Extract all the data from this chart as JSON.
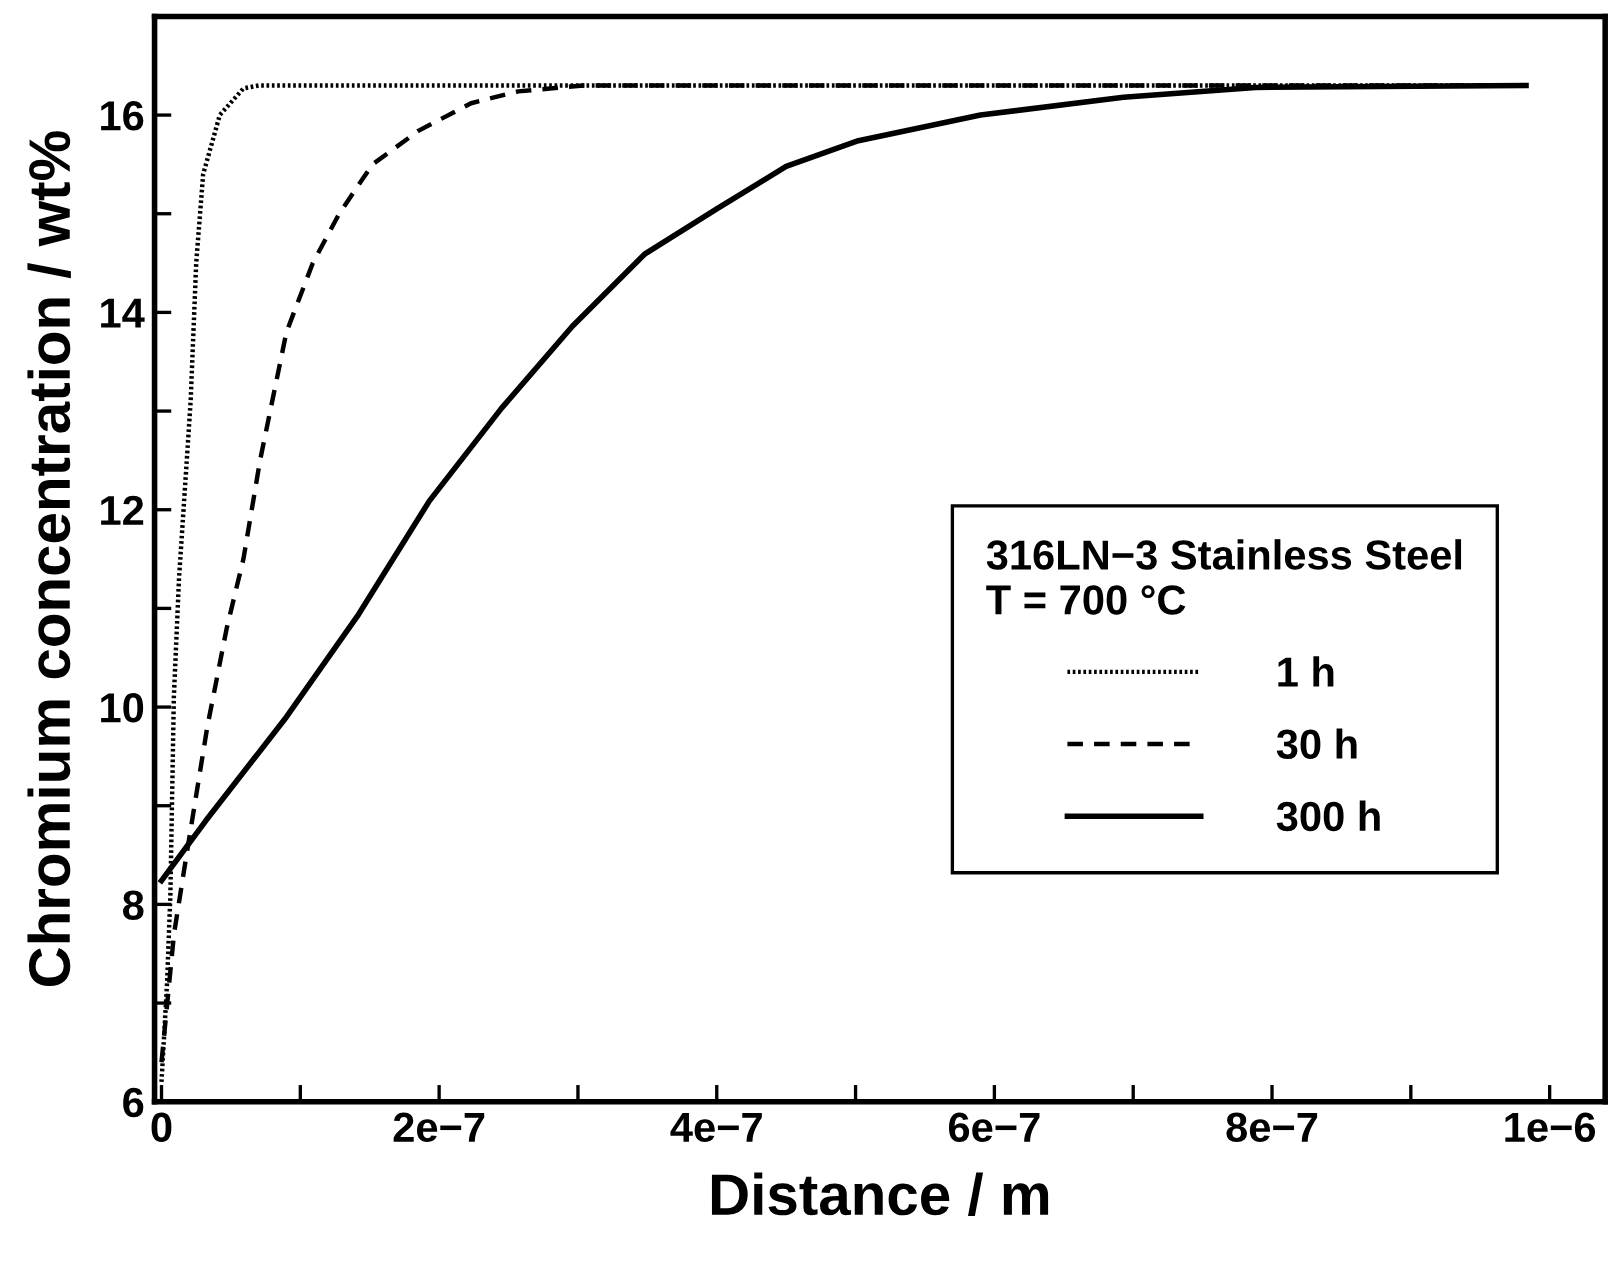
{
  "chart_data": {
    "type": "line",
    "xlabel": "Distance / m",
    "ylabel": "Chromium concentration / wt%",
    "legend_title": "316LN−3 Stainless Steel\nT = 700 °C",
    "xlim": [
      -5e-09,
      1.04e-06
    ],
    "ylim": [
      6,
      17
    ],
    "xticks": [
      {
        "value": 0,
        "label": "0"
      },
      {
        "value": 1e-07,
        "label": null
      },
      {
        "value": 2e-07,
        "label": "2e−7"
      },
      {
        "value": 3e-07,
        "label": null
      },
      {
        "value": 4e-07,
        "label": "4e−7"
      },
      {
        "value": 5e-07,
        "label": null
      },
      {
        "value": 6e-07,
        "label": "6e−7"
      },
      {
        "value": 7e-07,
        "label": null
      },
      {
        "value": 8e-07,
        "label": "8e−7"
      },
      {
        "value": 9e-07,
        "label": null
      },
      {
        "value": 1e-06,
        "label": "1e−6"
      }
    ],
    "yticks": [
      6,
      {
        "value": 7,
        "label": null
      },
      8,
      {
        "value": 9,
        "label": null
      },
      10,
      {
        "value": 11,
        "label": null
      },
      12,
      {
        "value": 13,
        "label": null
      },
      14,
      {
        "value": 15,
        "label": null
      },
      16
    ],
    "grid": false,
    "legend": "right",
    "marker": "none",
    "series": [
      {
        "name": "1 h",
        "color": "#000000",
        "line_style": "dotted",
        "x": [
          0,
          4e-09,
          6.4e-09,
          8.9e-09,
          1.26e-08,
          2.1e-08,
          2.5e-08,
          3e-08,
          4.2e-08,
          5.9e-08,
          7e-08,
          9.83e-07
        ],
        "values": [
          6.2,
          7.2,
          8.1,
          10.1,
          11.3,
          13.1,
          14.5,
          15.4,
          16.0,
          16.27,
          16.3,
          16.3
        ]
      },
      {
        "name": "30 h",
        "color": "#000000",
        "line_style": "dashed",
        "x": [
          0,
          9e-09,
          1.8e-08,
          3.3e-08,
          4.7e-08,
          5.9e-08,
          7.1e-08,
          9e-08,
          1.09e-07,
          1.28e-07,
          1.52e-07,
          1.85e-07,
          2.23e-07,
          2.57e-07,
          3.04e-07,
          9.83e-07
        ],
        "values": [
          6.4,
          7.7,
          8.5,
          9.8,
          10.8,
          11.5,
          12.5,
          13.8,
          14.5,
          15.0,
          15.5,
          15.84,
          16.12,
          16.24,
          16.3,
          16.3
        ]
      },
      {
        "name": "300 h",
        "color": "#000000",
        "line_style": "solid",
        "x": [
          0,
          3.2e-08,
          9e-08,
          1.42e-07,
          1.93e-07,
          2.45e-07,
          2.96e-07,
          3.48e-07,
          4e-07,
          4.5e-07,
          5.02e-07,
          5.9e-07,
          6.93e-07,
          7.88e-07,
          9.83e-07
        ],
        "values": [
          8.24,
          8.85,
          9.9,
          10.94,
          12.09,
          13.03,
          13.86,
          14.59,
          15.05,
          15.48,
          15.74,
          16.0,
          16.18,
          16.28,
          16.3
        ]
      }
    ]
  }
}
